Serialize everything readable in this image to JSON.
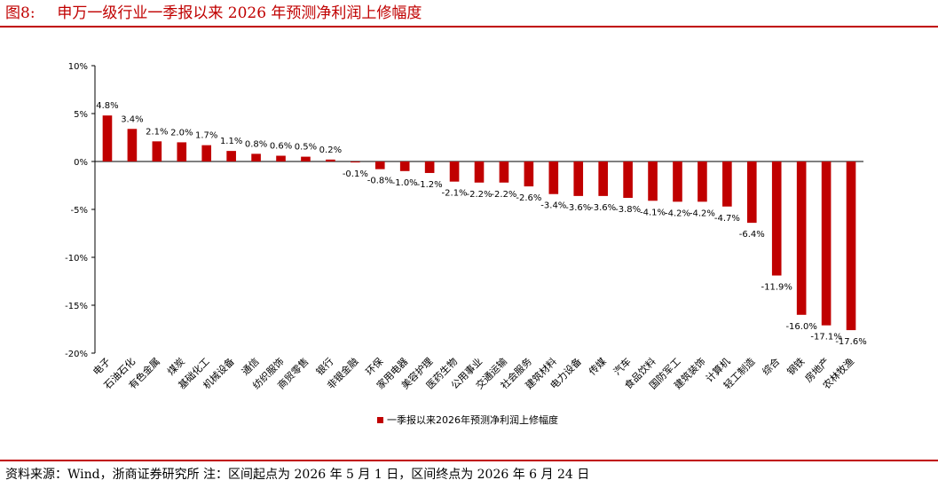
{
  "header": {
    "figure_label": "图8:",
    "title": "申万一级行业一季报以来 2026 年预测净利润上修幅度"
  },
  "footer": {
    "source": "资料来源：Wind，浙商证券研究所 注：区间起点为 2026 年 5 月 1 日，区间终点为 2026 年 6 月 24 日"
  },
  "colors": {
    "bar": "#c00000",
    "accent": "#c00000"
  },
  "chart_data": {
    "type": "bar",
    "title": "",
    "xlabel": "",
    "ylabel": "",
    "ylim": [
      -20,
      10
    ],
    "yticks": [
      10,
      5,
      0,
      -5,
      -10,
      -15,
      -20
    ],
    "ytick_labels": [
      "10%",
      "5%",
      "0%",
      "-5%",
      "-10%",
      "-15%",
      "-20%"
    ],
    "grid": false,
    "legend_position": "bottom",
    "categories": [
      "电子",
      "石油石化",
      "有色金属",
      "煤炭",
      "基础化工",
      "机械设备",
      "通信",
      "纺织服饰",
      "商贸零售",
      "银行",
      "非银金融",
      "环保",
      "家用电器",
      "美容护理",
      "医药生物",
      "公用事业",
      "交通运输",
      "社会服务",
      "建筑材料",
      "电力设备",
      "传媒",
      "汽车",
      "食品饮料",
      "国防军工",
      "建筑装饰",
      "计算机",
      "轻工制造",
      "综合",
      "钢铁",
      "房地产",
      "农林牧渔"
    ],
    "series": [
      {
        "name": "一季报以来2026年预测净利润上修幅度",
        "values": [
          4.8,
          3.4,
          2.1,
          2.0,
          1.7,
          1.1,
          0.8,
          0.6,
          0.5,
          0.2,
          -0.1,
          -0.8,
          -1.0,
          -1.2,
          -2.1,
          -2.2,
          -2.2,
          -2.6,
          -3.4,
          -3.6,
          -3.6,
          -3.8,
          -4.1,
          -4.2,
          -4.2,
          -4.7,
          -6.4,
          -11.9,
          -16.0,
          -17.1,
          -17.6
        ],
        "data_labels": [
          "4.8%",
          "3.4%",
          "2.1%",
          "2.0%",
          "1.7%",
          "1.1%",
          "0.8%",
          "0.6%",
          "0.5%",
          "0.2%",
          "-0.1%",
          "-0.8%",
          "-1.0%",
          "-1.2%",
          "-2.1%",
          "-2.2%",
          "-2.2%",
          "-2.6%",
          "-3.4%",
          "-3.6%",
          "-3.6%",
          "-3.8%",
          "-4.1%",
          "-4.2%",
          "-4.2%",
          "-4.7%",
          "-6.4%",
          "-11.9%",
          "-16.0%",
          "-17.1%",
          "-17.6%"
        ]
      }
    ]
  }
}
